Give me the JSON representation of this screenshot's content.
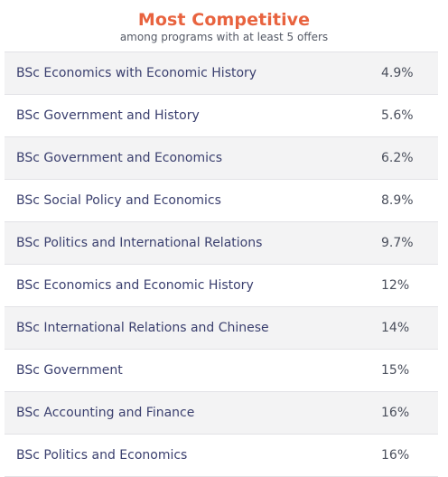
{
  "header": {
    "title": "Most Competitive",
    "subtitle": "among programs with at least 5 offers"
  },
  "rows": [
    {
      "program": "BSc Economics with Economic History",
      "rate": "4.9%"
    },
    {
      "program": "BSc Government and History",
      "rate": "5.6%"
    },
    {
      "program": "BSc Government and Economics",
      "rate": "6.2%"
    },
    {
      "program": "BSc Social Policy and Economics",
      "rate": "8.9%"
    },
    {
      "program": "BSc Politics and International Relations",
      "rate": "9.7%"
    },
    {
      "program": "BSc Economics and Economic History",
      "rate": "12%"
    },
    {
      "program": "BSc International Relations and Chinese",
      "rate": "14%"
    },
    {
      "program": "BSc Government",
      "rate": "15%"
    },
    {
      "program": "BSc Accounting and Finance",
      "rate": "16%"
    },
    {
      "program": "BSc Politics and Economics",
      "rate": "16%"
    }
  ],
  "colors": {
    "title": "#e8633f",
    "row_text": "#3a3f6e",
    "shaded_row": "#f3f3f4"
  }
}
